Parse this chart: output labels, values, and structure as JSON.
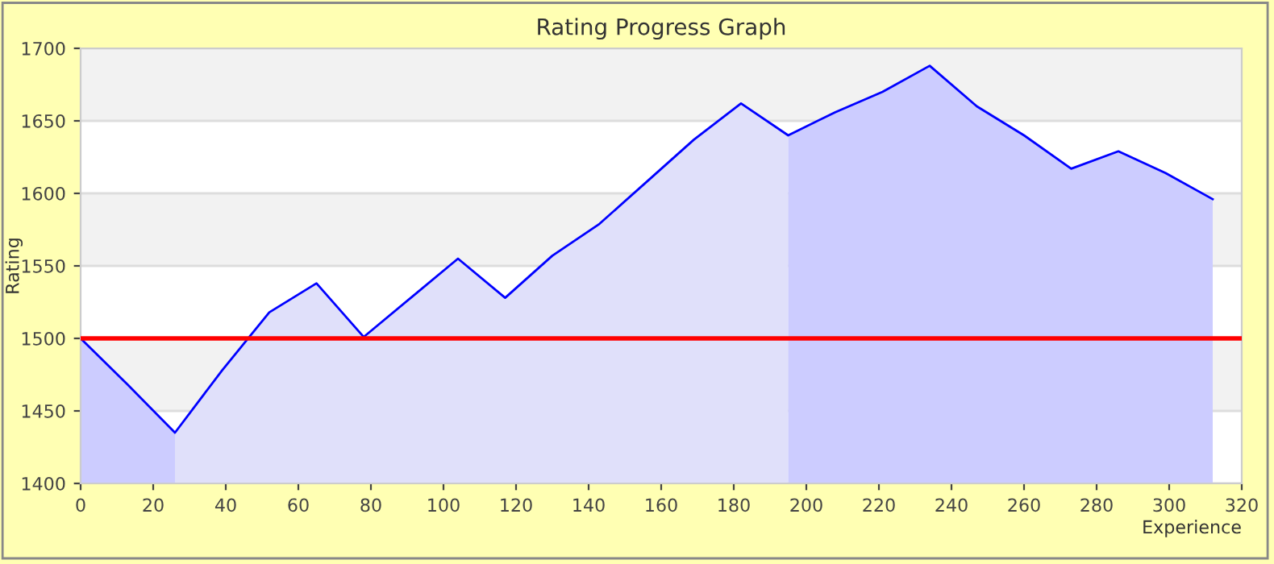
{
  "chart_data": {
    "type": "line",
    "title": "Rating Progress Graph",
    "xlabel": "Experience",
    "ylabel": "Rating",
    "xlim": [
      0,
      320
    ],
    "xticks": [
      0,
      20,
      40,
      60,
      80,
      100,
      120,
      140,
      160,
      180,
      200,
      220,
      240,
      260,
      280,
      300,
      320
    ],
    "ylim": [
      1400,
      1700
    ],
    "yticks": [
      1400,
      1450,
      1500,
      1550,
      1600,
      1650,
      1700
    ],
    "grid": "y",
    "legend": false,
    "marker": "none",
    "line_style": "solid",
    "series": [
      {
        "type": "area",
        "color": "#ccccff",
        "x": [
          0,
          13,
          26
        ],
        "values": [
          1500,
          1468,
          1435
        ]
      },
      {
        "type": "area",
        "color": "#e0e0fa",
        "x": [
          26,
          39,
          52,
          65,
          78,
          91,
          104,
          117,
          130,
          143,
          156,
          169,
          182,
          195
        ],
        "values": [
          1435,
          1478,
          1518,
          1538,
          1501,
          1528,
          1555,
          1528,
          1557,
          1579,
          1608,
          1637,
          1662,
          1640
        ]
      },
      {
        "type": "area",
        "color": "#ccccff",
        "x": [
          195,
          208,
          221,
          234,
          247,
          260,
          273,
          286,
          299,
          312
        ],
        "values": [
          1640,
          1656,
          1670,
          1688,
          1660,
          1640,
          1617,
          1629,
          1614,
          1596
        ]
      },
      {
        "type": "line",
        "color": "#0000ff",
        "x": [
          0,
          13,
          26,
          39,
          52,
          65,
          78,
          91,
          104,
          117,
          130,
          143,
          156,
          169,
          182,
          195,
          208,
          221,
          234,
          247,
          260,
          273,
          286,
          299,
          312
        ],
        "values": [
          1500,
          1468,
          1435,
          1478,
          1518,
          1538,
          1501,
          1528,
          1555,
          1528,
          1557,
          1579,
          1608,
          1637,
          1662,
          1640,
          1656,
          1670,
          1688,
          1660,
          1640,
          1617,
          1629,
          1614,
          1596
        ]
      }
    ],
    "ref_lines": [
      {
        "axis": "y",
        "value": 1500,
        "color": "#ff0000",
        "line_style": "solid"
      }
    ]
  }
}
